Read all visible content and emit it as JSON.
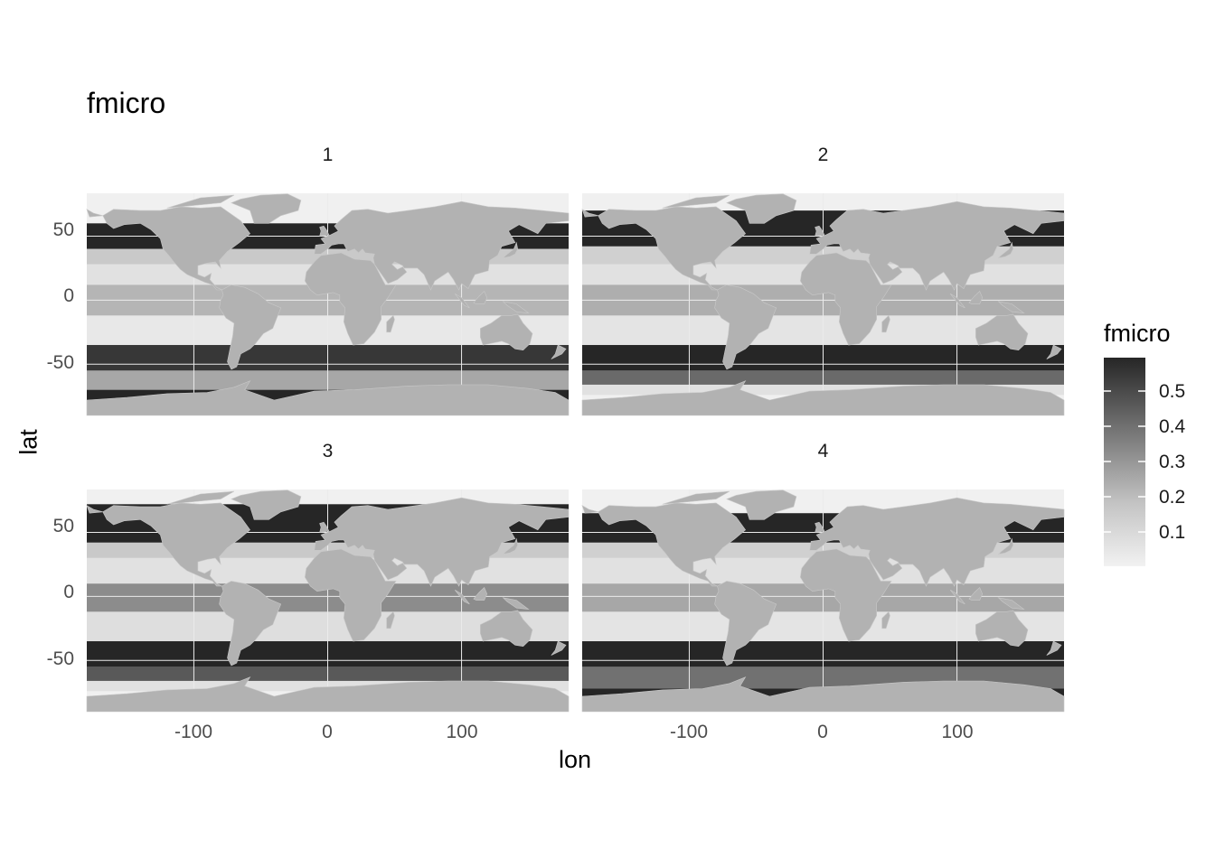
{
  "title": "fmicro",
  "xlabel": "lon",
  "ylabel": "lat",
  "panels": [
    {
      "label": "1"
    },
    {
      "label": "2"
    },
    {
      "label": "3"
    },
    {
      "label": "4"
    }
  ],
  "x_ticks": [
    "-100",
    "0",
    "100"
  ],
  "y_ticks": [
    "50",
    "0",
    "-50"
  ],
  "legend": {
    "title": "fmicro",
    "labels": [
      "0.5",
      "0.4",
      "0.3",
      "0.2",
      "0.1"
    ],
    "low_color": "#f2f2f2",
    "high_color": "#262626"
  },
  "colors": {
    "land": "#b2b2b2",
    "ocean_low": "#f2f2f2",
    "ocean_high": "#262626",
    "grid": "#ebebeb"
  }
}
